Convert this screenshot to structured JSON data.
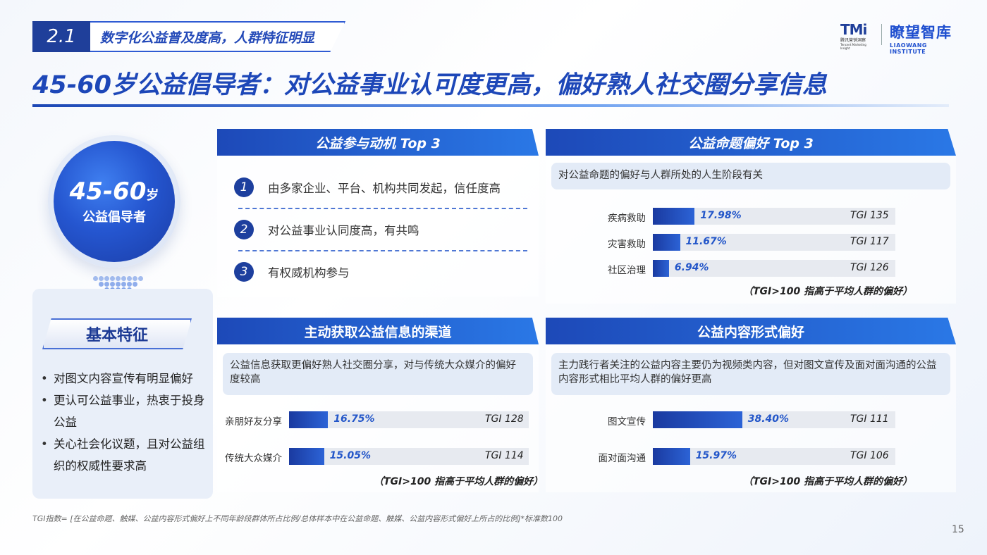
{
  "header": {
    "section_num": "2.1",
    "section_title": "数字化公益普及度高，人群特征明显",
    "logo_tmi": "TMi",
    "logo_tmi_sub1": "腾讯营销洞察",
    "logo_tmi_sub2": "Tencent Marketing Insight",
    "logo_lw_cn": "瞭望智库",
    "logo_lw_en": "LIAOWANG INSTITUTE"
  },
  "main_title": "45-60岁公益倡导者：对公益事业认可度更高，偏好熟人社交圈分享信息",
  "persona": {
    "age": "45-60",
    "age_unit": "岁",
    "role": "公益倡导者"
  },
  "features": {
    "title": "基本特征",
    "items": [
      "对图文内容宣传有明显偏好",
      "更认可公益事业，热衷于投身公益",
      "关心社会化议题，且对公益组织的权威性要求高"
    ]
  },
  "motives": {
    "title": "公益参与动机 Top 3",
    "items": [
      {
        "num": "1",
        "text": "由多家企业、平台、机构共同发起，信任度高"
      },
      {
        "num": "2",
        "text": "对公益事业认同度高，有共鸣"
      },
      {
        "num": "3",
        "text": "有权威机构参与"
      }
    ]
  },
  "topics": {
    "title": "公益命题偏好 Top 3",
    "note": "对公益命题的偏好与人群所处的人生阶段有关",
    "rows": [
      {
        "label": "疾病救助",
        "pct": "17.98%",
        "value": 17.98,
        "tgi": "TGI  135"
      },
      {
        "label": "灾害救助",
        "pct": "11.67%",
        "value": 11.67,
        "tgi": "TGI  117"
      },
      {
        "label": "社区治理",
        "pct": "6.94%",
        "value": 6.94,
        "tgi": "TGI  126"
      }
    ],
    "footnote": "（TGI>100 指高于平均人群的偏好）"
  },
  "channels": {
    "title": "主动获取公益信息的渠道",
    "note": "公益信息获取更偏好熟人社交圈分享，对与传统大众媒介的偏好度较高",
    "rows": [
      {
        "label": "亲朋好友分享",
        "pct": "16.75%",
        "value": 16.75,
        "tgi": "TGI  128"
      },
      {
        "label": "传统大众媒介",
        "pct": "15.05%",
        "value": 15.05,
        "tgi": "TGI  114"
      }
    ],
    "footnote": "（TGI>100 指高于平均人群的偏好）"
  },
  "formats": {
    "title": "公益内容形式偏好",
    "note": "主力践行者关注的公益内容主要仍为视频类内容，但对图文宣传及面对面沟通的公益内容形式相比平均人群的偏好更高",
    "rows": [
      {
        "label": "图文宣传",
        "pct": "38.40%",
        "value": 38.4,
        "tgi": "TGI  111"
      },
      {
        "label": "面对面沟通",
        "pct": "15.97%",
        "value": 15.97,
        "tgi": "TGI  106"
      }
    ],
    "footnote": "（TGI>100 指高于平均人群的偏好）"
  },
  "tgi_note": "TGI指数= [在公益命题、触媒、公益内容形式偏好上不同年龄段群体所占比例/总体样本中在公益命题、触媒、公益内容形式偏好上所占的比例]*标准数100",
  "page_num": "15",
  "colors": {
    "primary": "#1d49b8",
    "accent": "#2a78e6",
    "bar": "#1a3aa0"
  }
}
